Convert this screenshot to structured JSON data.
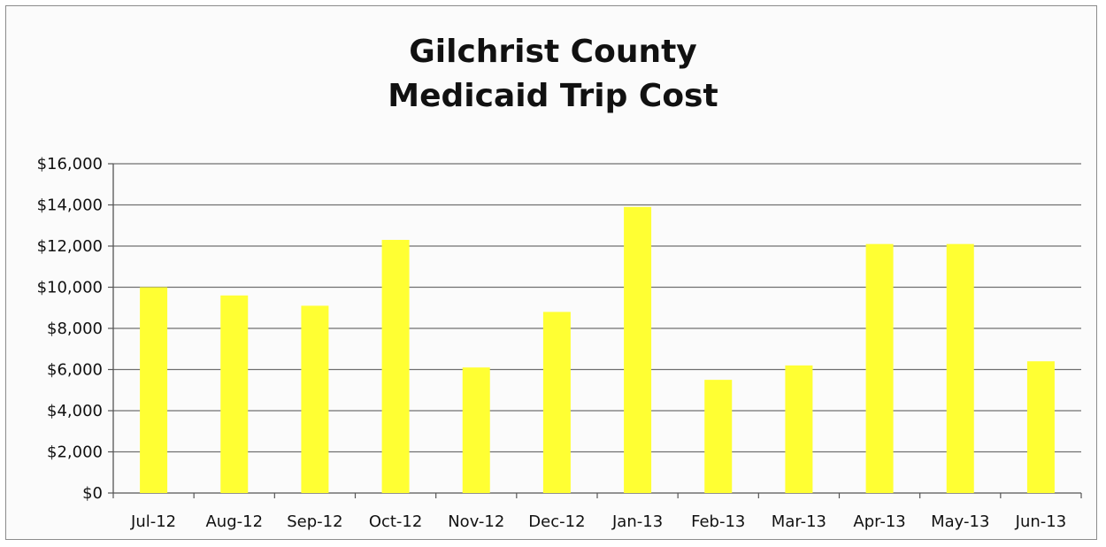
{
  "chart_data": {
    "type": "bar",
    "title_lines": [
      "Gilchrist County",
      "Medicaid Trip Cost"
    ],
    "xlabel": "",
    "ylabel": "",
    "categories": [
      "Jul-12",
      "Aug-12",
      "Sep-12",
      "Oct-12",
      "Nov-12",
      "Dec-12",
      "Jan-13",
      "Feb-13",
      "Mar-13",
      "Apr-13",
      "May-13",
      "Jun-13"
    ],
    "values": [
      10000,
      9600,
      9100,
      12300,
      6100,
      8800,
      13900,
      5500,
      6200,
      12100,
      12100,
      6400
    ],
    "ylim": [
      0,
      16000
    ],
    "yticks": [
      0,
      2000,
      4000,
      6000,
      8000,
      10000,
      12000,
      14000,
      16000
    ],
    "ytick_labels": [
      "$0",
      "$2,000",
      "$4,000",
      "$6,000",
      "$8,000",
      "$10,000",
      "$12,000",
      "$14,000",
      "$16,000"
    ],
    "grid": true,
    "legend": "none",
    "bar_color": "#ffff33",
    "grid_color": "#6f6f6f"
  }
}
